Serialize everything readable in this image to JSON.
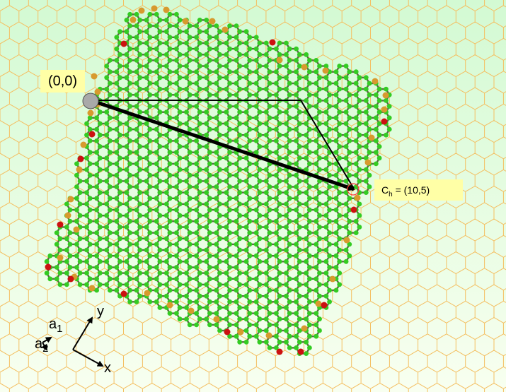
{
  "origin_label": "(0,0)",
  "chiral": {
    "symbol": "C",
    "subscript": "h",
    "value": "= (10,5)"
  },
  "axes": {
    "y": "y",
    "x": "x"
  },
  "lattice_vectors": {
    "a1": {
      "symbol": "a",
      "subscript": "1"
    },
    "a2": {
      "symbol": "a",
      "subscript": "2"
    }
  },
  "colors": {
    "bg_top": "#d3fad3",
    "bg_bottom": "#f8fff0",
    "honeycomb_bg": "#f4bf62",
    "carbon": "#33cc22",
    "bond": "#5a6a45",
    "edge_orange": "#d79a2e",
    "edge_red": "#cc1111",
    "origin_dot": "#a9a9a9",
    "end_circle": "#ff3333"
  }
}
